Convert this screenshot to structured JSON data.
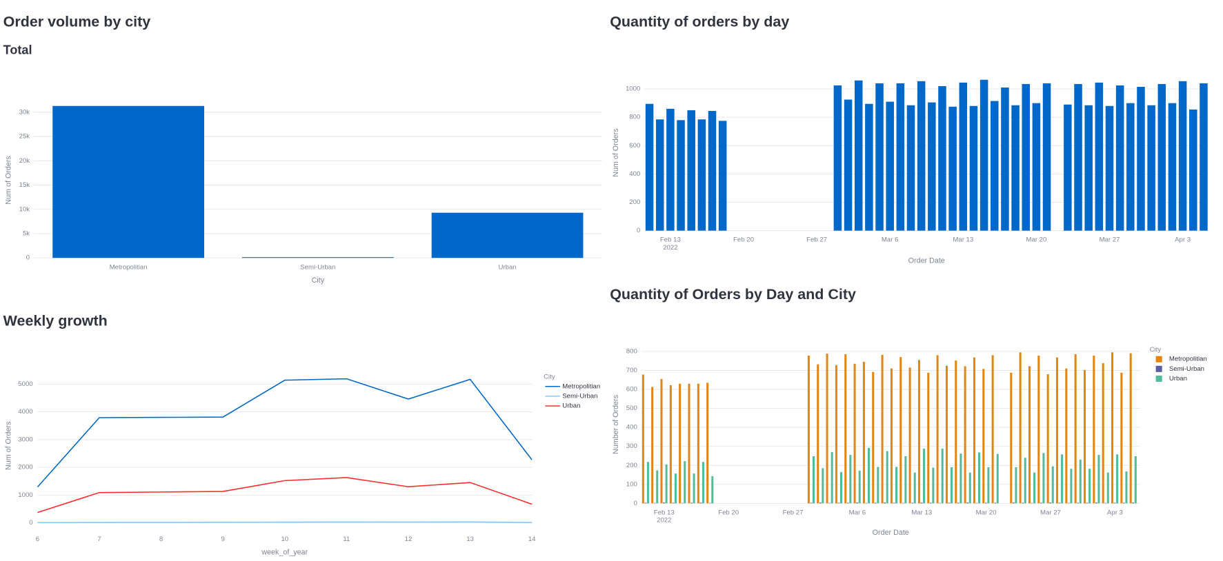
{
  "chart_data": [
    {
      "type": "bar",
      "title": "Order volume by city",
      "subtitle": "Total",
      "categories": [
        "Metropolitian",
        "Semi-Urban",
        "Urban"
      ],
      "values": [
        31280,
        150,
        9300
      ],
      "color": "#0068c9",
      "xlabel": "City",
      "ylabel": "Num of Orders",
      "ylim": [
        0,
        32000
      ],
      "yticks": [
        0,
        {
          "value": 5000,
          "label": "5k"
        },
        {
          "value": 10000,
          "label": "10k"
        },
        {
          "value": 15000,
          "label": "15k"
        },
        {
          "value": 20000,
          "label": "20k"
        },
        {
          "value": 25000,
          "label": "25k"
        },
        {
          "value": 30000,
          "label": "30k"
        }
      ],
      "grid": true
    },
    {
      "type": "bar",
      "title": "Quantity of orders by day",
      "x": [
        "2022-02-11",
        "2022-02-12",
        "2022-02-13",
        "2022-02-14",
        "2022-02-15",
        "2022-02-16",
        "2022-02-17",
        "2022-02-18",
        "2022-03-01",
        "2022-03-02",
        "2022-03-03",
        "2022-03-04",
        "2022-03-05",
        "2022-03-06",
        "2022-03-07",
        "2022-03-08",
        "2022-03-09",
        "2022-03-10",
        "2022-03-11",
        "2022-03-12",
        "2022-03-13",
        "2022-03-14",
        "2022-03-15",
        "2022-03-16",
        "2022-03-17",
        "2022-03-18",
        "2022-03-19",
        "2022-03-20",
        "2022-03-21",
        "2022-03-23",
        "2022-03-24",
        "2022-03-25",
        "2022-03-26",
        "2022-03-27",
        "2022-03-28",
        "2022-03-29",
        "2022-03-30",
        "2022-03-31",
        "2022-04-01",
        "2022-04-02",
        "2022-04-03",
        "2022-04-04",
        "2022-04-05"
      ],
      "values": [
        895,
        785,
        860,
        780,
        850,
        785,
        845,
        775,
        1025,
        925,
        1060,
        895,
        1040,
        910,
        1040,
        885,
        1055,
        905,
        1020,
        875,
        1045,
        880,
        1065,
        915,
        1010,
        885,
        1035,
        900,
        1040,
        890,
        1035,
        885,
        1045,
        880,
        1025,
        900,
        1015,
        885,
        1035,
        900,
        1055,
        855,
        1040
      ],
      "color": "#0068c9",
      "xlabel": "Order Date",
      "ylabel": "Num of Orders",
      "xlim": [
        "2022-02-10T12:00Z",
        "2022-04-05T12:00Z"
      ],
      "xticks": [
        {
          "value": "2022-02-13",
          "label": "Feb 13"
        },
        {
          "value": "2022-02-20",
          "label": "Feb 20"
        },
        {
          "value": "2022-02-27",
          "label": "Feb 27"
        },
        {
          "value": "2022-03-06",
          "label": "Mar 6"
        },
        {
          "value": "2022-03-13",
          "label": "Mar 13"
        },
        {
          "value": "2022-03-20",
          "label": "Mar 20"
        },
        {
          "value": "2022-03-27",
          "label": "Mar 27"
        },
        {
          "value": "2022-04-03",
          "label": "Apr 3"
        }
      ],
      "x_year": "2022",
      "ylim": [
        0,
        1100
      ],
      "yticks": [
        0,
        200,
        400,
        600,
        800,
        1000
      ],
      "grid": true
    },
    {
      "type": "line",
      "title": "Weekly growth",
      "x": [
        6,
        7,
        8,
        9,
        10,
        11,
        12,
        13,
        14
      ],
      "series": [
        {
          "name": "Metropolitian",
          "color": "#0068c9",
          "values": [
            1290,
            3790,
            3800,
            3810,
            5140,
            5190,
            4460,
            5170,
            2270
          ]
        },
        {
          "name": "Semi-Urban",
          "color": "#83c9ff",
          "values": [
            8,
            12,
            15,
            20,
            25,
            28,
            26,
            30,
            10
          ]
        },
        {
          "name": "Urban",
          "color": "#ff2b2b",
          "values": [
            370,
            1090,
            1110,
            1130,
            1520,
            1630,
            1300,
            1450,
            670
          ]
        }
      ],
      "legend_title": "City",
      "xlabel": "week_of_year",
      "ylabel": "Num of Orders",
      "xlim": [
        6,
        14
      ],
      "xticks": [
        6,
        7,
        8,
        9,
        10,
        11,
        12,
        13,
        14
      ],
      "ylim": [
        -150,
        5700
      ],
      "yticks": [
        0,
        1000,
        2000,
        3000,
        4000,
        5000
      ],
      "grid": true
    },
    {
      "type": "grouped_bar",
      "title": "Quantity of Orders by Day and City",
      "x": [
        "2022-02-11",
        "2022-02-12",
        "2022-02-13",
        "2022-02-14",
        "2022-02-15",
        "2022-02-16",
        "2022-02-17",
        "2022-02-18",
        "2022-03-01",
        "2022-03-02",
        "2022-03-03",
        "2022-03-04",
        "2022-03-05",
        "2022-03-06",
        "2022-03-07",
        "2022-03-08",
        "2022-03-09",
        "2022-03-10",
        "2022-03-11",
        "2022-03-12",
        "2022-03-13",
        "2022-03-14",
        "2022-03-15",
        "2022-03-16",
        "2022-03-17",
        "2022-03-18",
        "2022-03-19",
        "2022-03-20",
        "2022-03-21",
        "2022-03-23",
        "2022-03-24",
        "2022-03-25",
        "2022-03-26",
        "2022-03-27",
        "2022-03-28",
        "2022-03-29",
        "2022-03-30",
        "2022-03-31",
        "2022-04-01",
        "2022-04-02",
        "2022-04-03",
        "2022-04-04",
        "2022-04-05"
      ],
      "series": [
        {
          "name": "Metropolitian",
          "color": "#e8830c",
          "values": [
            678,
            613,
            655,
            622,
            630,
            630,
            630,
            635,
            778,
            732,
            788,
            728,
            785,
            735,
            745,
            692,
            782,
            710,
            770,
            715,
            755,
            688,
            780,
            725,
            752,
            722,
            768,
            708,
            780,
            688,
            795,
            722,
            778,
            680,
            768,
            710,
            785,
            702,
            778,
            738,
            795,
            688,
            790
          ]
        },
        {
          "name": "Semi-Urban",
          "color": "#5b5ea6",
          "values": [
            3,
            2,
            4,
            3,
            2,
            3,
            4,
            2,
            3,
            4,
            2,
            3,
            3,
            4,
            2,
            3,
            4,
            3,
            2,
            3,
            4,
            3,
            2,
            3,
            3,
            4,
            2,
            3,
            3,
            4,
            3,
            2,
            3,
            4,
            3,
            2,
            3,
            3,
            4,
            2,
            3,
            3,
            4
          ]
        },
        {
          "name": "Urban",
          "color": "#52bc9a",
          "values": [
            218,
            173,
            205,
            157,
            222,
            157,
            218,
            143,
            248,
            185,
            270,
            165,
            255,
            172,
            292,
            192,
            275,
            192,
            248,
            162,
            288,
            188,
            288,
            190,
            262,
            162,
            268,
            190,
            260,
            190,
            240,
            162,
            265,
            195,
            258,
            182,
            230,
            182,
            255,
            162,
            258,
            168,
            248
          ]
        }
      ],
      "legend_title": "City",
      "xlabel": "Order Date",
      "ylabel": "Number of Orders",
      "xlim": [
        "2022-02-10T12:00Z",
        "2022-04-05T18:00Z"
      ],
      "xticks": [
        {
          "value": "2022-02-13",
          "label": "Feb 13"
        },
        {
          "value": "2022-02-20",
          "label": "Feb 20"
        },
        {
          "value": "2022-02-27",
          "label": "Feb 27"
        },
        {
          "value": "2022-03-06",
          "label": "Mar 6"
        },
        {
          "value": "2022-03-13",
          "label": "Mar 13"
        },
        {
          "value": "2022-03-20",
          "label": "Mar 20"
        },
        {
          "value": "2022-03-27",
          "label": "Mar 27"
        },
        {
          "value": "2022-04-03",
          "label": "Apr 3"
        }
      ],
      "x_year": "2022",
      "ylim": [
        0,
        830
      ],
      "yticks": [
        0,
        100,
        200,
        300,
        400,
        500,
        600,
        700,
        800
      ],
      "grid": true
    }
  ]
}
